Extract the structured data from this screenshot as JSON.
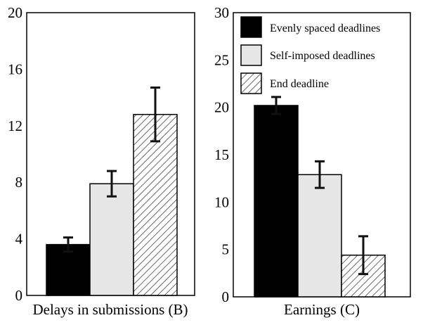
{
  "chart_data": [
    {
      "type": "bar",
      "xlabel": "Delays in submissions (B)",
      "ylabel": "",
      "ylim": [
        0,
        20
      ],
      "yticks": [
        0,
        4,
        8,
        12,
        16,
        20
      ],
      "grid": false,
      "series": [
        {
          "name": "Evenly spaced deadlines",
          "value": 3.6,
          "error": [
            3.1,
            4.1
          ],
          "fill": "black"
        },
        {
          "name": "Self-imposed deadlines",
          "value": 7.9,
          "error": [
            7.0,
            8.8
          ],
          "fill": "lightgray"
        },
        {
          "name": "End deadline",
          "value": 12.8,
          "error": [
            10.9,
            14.7
          ],
          "fill": "hatch"
        }
      ]
    },
    {
      "type": "bar",
      "xlabel": "Earnings (C)",
      "ylabel": "",
      "ylim": [
        0,
        30
      ],
      "yticks": [
        0,
        5,
        10,
        15,
        20,
        25,
        30
      ],
      "grid": false,
      "legend_position": "top-right",
      "series": [
        {
          "name": "Evenly spaced deadlines",
          "value": 20.2,
          "error": [
            19.3,
            21.1
          ],
          "fill": "black"
        },
        {
          "name": "Self-imposed deadlines",
          "value": 12.9,
          "error": [
            11.5,
            14.3
          ],
          "fill": "lightgray"
        },
        {
          "name": "End deadline",
          "value": 4.4,
          "error": [
            2.4,
            6.4
          ],
          "fill": "hatch"
        }
      ]
    }
  ],
  "legend": {
    "items": [
      {
        "label": "Evenly spaced deadlines",
        "fill": "black"
      },
      {
        "label": "Self-imposed deadlines",
        "fill": "lightgray"
      },
      {
        "label": "End deadline",
        "fill": "hatch"
      }
    ]
  },
  "colors": {
    "black": "#000000",
    "lightgray": "#e6e6e6",
    "hatch_stroke": "#444444",
    "hatch_bg": "#ffffff"
  }
}
